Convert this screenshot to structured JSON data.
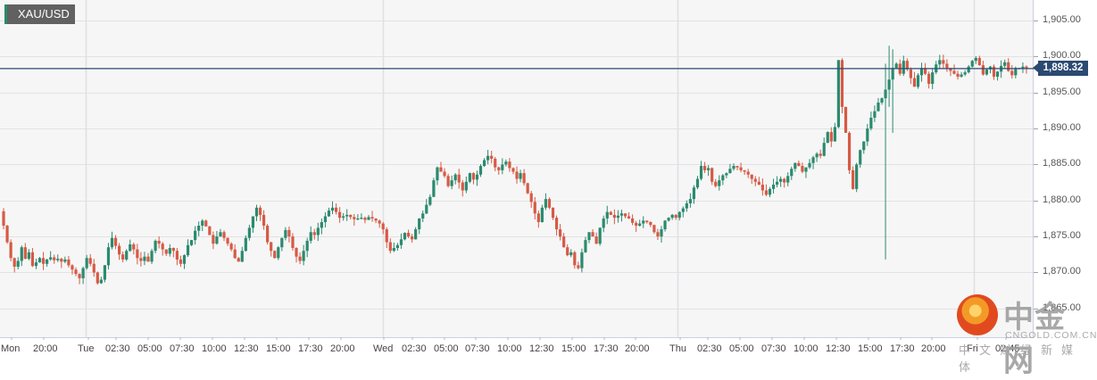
{
  "chart_data": {
    "type": "candlestick",
    "title": "XAU/USD",
    "symbol": "XAU/USD",
    "current_price": 1898.32,
    "current_price_label": "1,898.32",
    "ylim": [
      1865,
      1905
    ],
    "y_ticks": [
      {
        "value": 1905,
        "label": "1,905.00"
      },
      {
        "value": 1900,
        "label": "1,900.00"
      },
      {
        "value": 1895,
        "label": "1,895.00"
      },
      {
        "value": 1890,
        "label": "1,890.00"
      },
      {
        "value": 1885,
        "label": "1,885.00"
      },
      {
        "value": 1880,
        "label": "1,880.00"
      },
      {
        "value": 1875,
        "label": "1,875.00"
      },
      {
        "value": 1870,
        "label": "1,870.00"
      },
      {
        "value": 1865,
        "label": "1,865.00"
      }
    ],
    "x_ticks": [
      {
        "x": 1,
        "label": "Mon"
      },
      {
        "x": 37,
        "label": "20:00"
      },
      {
        "x": 87,
        "label": "Tue"
      },
      {
        "x": 118,
        "label": "02:30"
      },
      {
        "x": 154,
        "label": "05:00"
      },
      {
        "x": 190,
        "label": "07:30"
      },
      {
        "x": 226,
        "label": "10:00"
      },
      {
        "x": 262,
        "label": "12:30"
      },
      {
        "x": 298,
        "label": "15:00"
      },
      {
        "x": 334,
        "label": "17:30"
      },
      {
        "x": 370,
        "label": "20:00"
      },
      {
        "x": 418,
        "label": "Wed"
      },
      {
        "x": 450,
        "label": "02:30"
      },
      {
        "x": 486,
        "label": "05:00"
      },
      {
        "x": 521,
        "label": "07:30"
      },
      {
        "x": 557,
        "label": "10:00"
      },
      {
        "x": 593,
        "label": "12:30"
      },
      {
        "x": 629,
        "label": "15:00"
      },
      {
        "x": 665,
        "label": "17:30"
      },
      {
        "x": 700,
        "label": "20:00"
      },
      {
        "x": 750,
        "label": "Thu"
      },
      {
        "x": 781,
        "label": "02:30"
      },
      {
        "x": 817,
        "label": "05:00"
      },
      {
        "x": 853,
        "label": "07:30"
      },
      {
        "x": 889,
        "label": "10:00"
      },
      {
        "x": 925,
        "label": "12:30"
      },
      {
        "x": 961,
        "label": "15:00"
      },
      {
        "x": 997,
        "label": "17:30"
      },
      {
        "x": 1032,
        "label": "20:00"
      },
      {
        "x": 1083,
        "label": "Fri"
      },
      {
        "x": 1115,
        "label": "02:45"
      }
    ],
    "day_separators_x": [
      96,
      429,
      759,
      1091
    ],
    "colors": {
      "up": "#2b8a6e",
      "down": "#d65a45",
      "price_line": "#2b4a72",
      "grid": "#e2e2e6",
      "background": "#f6f6f6"
    },
    "closes": [
      1876.5,
      1874.2,
      1872.0,
      1870.8,
      1871.6,
      1873.5,
      1871.9,
      1872.8,
      1870.9,
      1871.4,
      1872.0,
      1871.2,
      1871.8,
      1872.1,
      1871.7,
      1871.9,
      1871.5,
      1871.8,
      1871.0,
      1870.4,
      1869.8,
      1869.2,
      1870.6,
      1872.0,
      1871.2,
      1870.0,
      1868.5,
      1869.0,
      1871.0,
      1873.5,
      1874.8,
      1873.7,
      1872.5,
      1871.8,
      1873.0,
      1873.9,
      1873.2,
      1872.0,
      1871.6,
      1872.2,
      1871.5,
      1873.0,
      1874.4,
      1874.0,
      1873.2,
      1872.6,
      1873.4,
      1873.0,
      1871.8,
      1871.2,
      1872.4,
      1873.8,
      1874.5,
      1875.8,
      1876.5,
      1877.2,
      1876.4,
      1875.2,
      1874.0,
      1875.0,
      1875.6,
      1874.8,
      1874.0,
      1873.2,
      1872.0,
      1871.5,
      1873.0,
      1874.8,
      1876.2,
      1877.8,
      1879.0,
      1878.0,
      1876.5,
      1874.2,
      1873.0,
      1872.0,
      1873.5,
      1874.8,
      1875.9,
      1875.0,
      1873.4,
      1872.2,
      1871.6,
      1873.0,
      1874.4,
      1875.6,
      1875.2,
      1876.2,
      1877.0,
      1877.8,
      1878.6,
      1879.0,
      1878.4,
      1877.6,
      1877.8,
      1878.0,
      1877.7,
      1877.4,
      1877.5,
      1877.6,
      1877.3,
      1877.7,
      1877.5,
      1877.2,
      1876.8,
      1876.0,
      1874.2,
      1873.0,
      1873.4,
      1873.8,
      1874.6,
      1875.5,
      1875.0,
      1874.6,
      1876.0,
      1877.5,
      1878.2,
      1879.4,
      1880.5,
      1882.8,
      1884.6,
      1884.0,
      1883.4,
      1882.0,
      1882.8,
      1883.6,
      1882.5,
      1881.4,
      1882.6,
      1883.8,
      1882.9,
      1883.6,
      1884.8,
      1885.6,
      1886.2,
      1885.8,
      1884.6,
      1884.2,
      1885.0,
      1885.4,
      1884.5,
      1884.0,
      1883.0,
      1883.8,
      1882.4,
      1881.0,
      1879.8,
      1878.2,
      1877.0,
      1879.0,
      1880.2,
      1879.0,
      1877.6,
      1876.0,
      1875.0,
      1873.5,
      1872.4,
      1872.8,
      1871.0,
      1870.6,
      1872.8,
      1874.5,
      1875.6,
      1875.0,
      1874.0,
      1876.2,
      1877.5,
      1878.4,
      1878.0,
      1877.6,
      1877.9,
      1878.2,
      1877.8,
      1877.5,
      1876.9,
      1876.5,
      1876.8,
      1877.2,
      1877.0,
      1876.6,
      1875.6,
      1875.0,
      1876.0,
      1877.2,
      1877.6,
      1878.0,
      1877.6,
      1878.4,
      1878.9,
      1879.6,
      1880.2,
      1881.8,
      1883.0,
      1884.8,
      1884.2,
      1884.5,
      1882.6,
      1882.0,
      1882.8,
      1883.5,
      1883.8,
      1884.4,
      1884.8,
      1884.6,
      1884.2,
      1884.0,
      1883.6,
      1883.0,
      1882.6,
      1882.2,
      1881.4,
      1880.8,
      1881.6,
      1882.2,
      1882.6,
      1883.0,
      1882.5,
      1883.4,
      1884.4,
      1885.2,
      1884.8,
      1884.0,
      1884.6,
      1885.2,
      1886.0,
      1886.5,
      1886.2,
      1888.0,
      1889.5,
      1888.2,
      1890.2,
      1899.5,
      1893.0,
      1889.4,
      1884.2,
      1881.6,
      1885.0,
      1887.0,
      1888.2,
      1890.0,
      1891.5,
      1892.4,
      1893.6,
      1894.2,
      1895.4,
      1896.8,
      1898.4,
      1899.0,
      1897.6,
      1899.4,
      1898.2,
      1897.0,
      1895.8,
      1897.4,
      1898.4,
      1897.6,
      1896.2,
      1897.8,
      1898.9,
      1899.5,
      1899.0,
      1898.4,
      1898.0,
      1897.6,
      1897.2,
      1897.5,
      1897.8,
      1898.6,
      1899.4,
      1899.8,
      1898.8,
      1897.5,
      1898.2,
      1898.6,
      1897.2,
      1897.9,
      1898.7,
      1899.2,
      1898.0,
      1897.4,
      1898.4,
      1898.3,
      1898.6,
      1898.32
    ],
    "spike_wicks": [
      {
        "index": 244,
        "low": 1871.8,
        "high": 1899.0
      },
      {
        "index": 245,
        "low": 1893.0,
        "high": 1901.5
      },
      {
        "index": 246,
        "low": 1889.4,
        "high": 1901.0
      }
    ]
  },
  "header": {
    "symbol_label": "XAU/USD"
  },
  "watermark": {
    "brand_cn": "中金网",
    "brand_en": "CNGOLD.COM.CN",
    "tagline": "中文财经新媒体"
  }
}
